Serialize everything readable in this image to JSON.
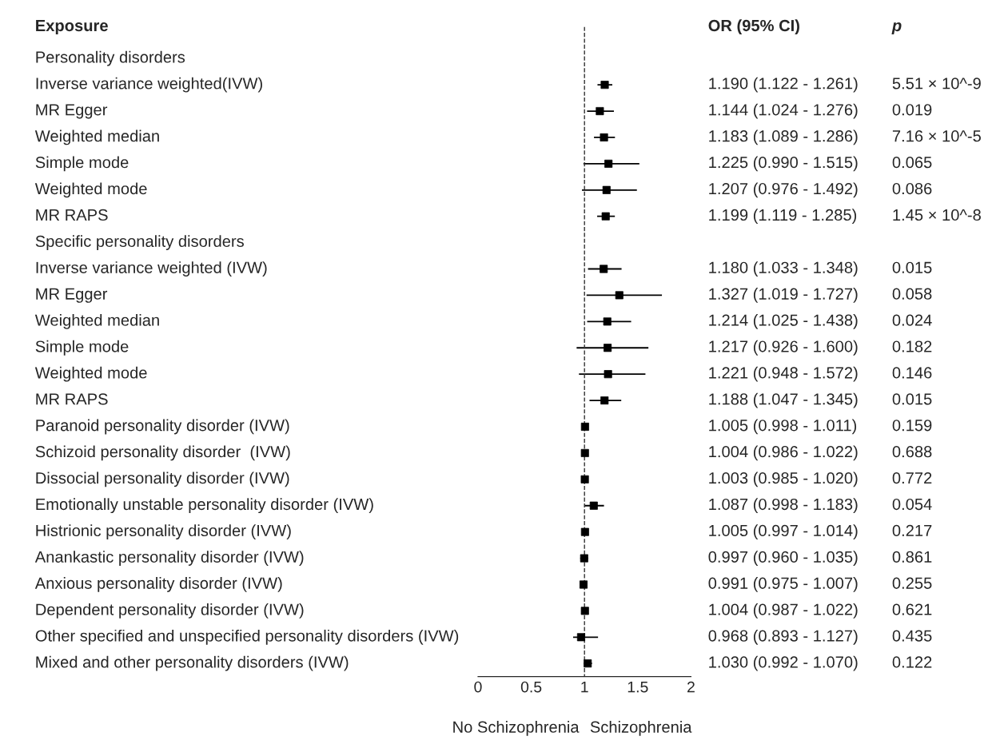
{
  "chart_data": {
    "type": "scatter",
    "orientation": "horizontal",
    "marker": "square",
    "grid": false,
    "categories": [
      "Personality disorders",
      "Inverse variance weighted(IVW)",
      "MR Egger",
      "Weighted median",
      "Simple mode",
      "Weighted mode",
      "MR RAPS",
      "Specific personality disorders",
      "Inverse variance weighted (IVW)",
      "MR Egger",
      "Weighted median",
      "Simple mode",
      "Weighted mode",
      "MR RAPS",
      "Paranoid personality disorder (IVW)",
      "Schizoid personality disorder  (IVW)",
      "Dissocial personality disorder (IVW)",
      "Emotionally unstable personality disorder (IVW)",
      "Histrionic personality disorder (IVW)",
      "Anankastic personality disorder (IVW)",
      "Anxious personality disorder (IVW)",
      "Dependent personality disorder (IVW)",
      "Other specified and unspecified personality disorders (IVW)",
      "Mixed and other personality disorders (IVW)"
    ],
    "values": [
      null,
      1.19,
      1.144,
      1.183,
      1.225,
      1.207,
      1.199,
      null,
      1.18,
      1.327,
      1.214,
      1.217,
      1.221,
      1.188,
      1.005,
      1.004,
      1.003,
      1.087,
      1.005,
      0.997,
      0.991,
      1.004,
      0.968,
      1.03
    ],
    "errors": [
      null,
      [
        1.122,
        1.261
      ],
      [
        1.024,
        1.276
      ],
      [
        1.089,
        1.286
      ],
      [
        0.99,
        1.515
      ],
      [
        0.976,
        1.492
      ],
      [
        1.119,
        1.285
      ],
      null,
      [
        1.033,
        1.348
      ],
      [
        1.019,
        1.727
      ],
      [
        1.025,
        1.438
      ],
      [
        0.926,
        1.6
      ],
      [
        0.948,
        1.572
      ],
      [
        1.047,
        1.345
      ],
      [
        0.998,
        1.011
      ],
      [
        0.986,
        1.022
      ],
      [
        0.985,
        1.02
      ],
      [
        0.998,
        1.183
      ],
      [
        0.997,
        1.014
      ],
      [
        0.96,
        1.035
      ],
      [
        0.975,
        1.007
      ],
      [
        0.987,
        1.022
      ],
      [
        0.893,
        1.127
      ],
      [
        0.992,
        1.07
      ]
    ],
    "value_labels": [
      null,
      "1.190 (1.122 - 1.261)",
      "1.144 (1.024 - 1.276)",
      "1.183 (1.089 - 1.286)",
      "1.225 (0.990 - 1.515)",
      "1.207 (0.976 - 1.492)",
      "1.199 (1.119 - 1.285)",
      null,
      "1.180 (1.033 - 1.348)",
      "1.327 (1.019 - 1.727)",
      "1.214 (1.025 - 1.438)",
      "1.217 (0.926 - 1.600)",
      "1.221 (0.948 - 1.572)",
      "1.188 (1.047 - 1.345)",
      "1.005 (0.998 - 1.011)",
      "1.004 (0.986 - 1.022)",
      "1.003 (0.985 - 1.020)",
      "1.087 (0.998 - 1.183)",
      "1.005 (0.997 - 1.014)",
      "0.997 (0.960 - 1.035)",
      "0.991 (0.975 - 1.007)",
      "1.004 (0.987 - 1.022)",
      "0.968 (0.893 - 1.127)",
      "1.030 (0.992 - 1.070)"
    ],
    "annotations": [
      "Exposure",
      "OR (95% CI)",
      "p",
      "No Schizophrenia",
      "Schizophrenia",
      "5.51 × 10^-9",
      "0.019",
      "7.16 × 10^-5",
      "0.065",
      "0.086",
      "1.45 × 10^-8",
      "0.015",
      "0.058",
      "0.024",
      "0.182",
      "0.146",
      "0.015",
      "0.159",
      "0.688",
      "0.772",
      "0.054",
      "0.217",
      "0.861",
      "0.255",
      "0.621",
      "0.435",
      "0.122"
    ],
    "color": "#000000",
    "xlim": [
      0,
      2
    ],
    "xticks": [
      0,
      0.5,
      1,
      1.5,
      2
    ],
    "ref_lines": [
      {
        "axis": "x",
        "value": 1,
        "line_style": "dashed",
        "color": "#333333"
      }
    ]
  }
}
